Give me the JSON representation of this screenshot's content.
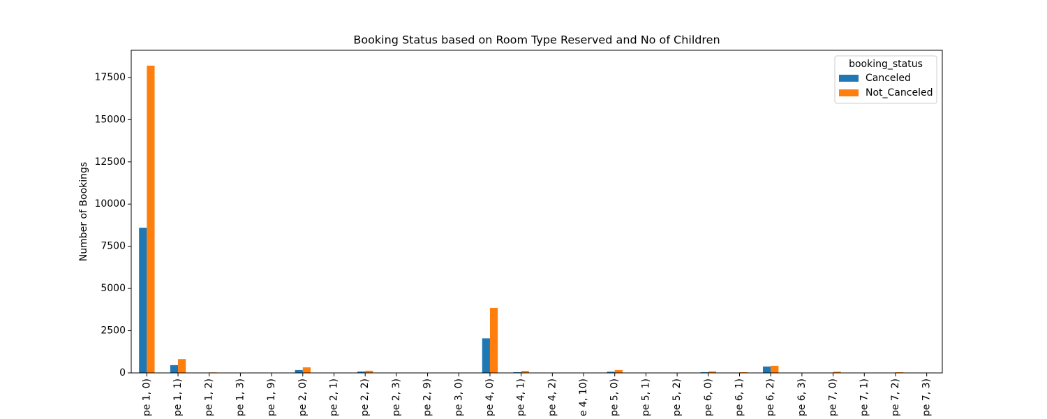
{
  "chart_data": {
    "type": "bar",
    "title": "Booking Status based on Room Type Reserved and No of Children",
    "ylabel": "Number of Bookings",
    "legend_title": "booking_status",
    "legend_loc": "upper right",
    "categories": [
      "pe 1, 0)",
      "pe 1, 1)",
      "pe 1, 2)",
      "pe 1, 3)",
      "pe 1, 9)",
      "pe 2, 0)",
      "pe 2, 1)",
      "pe 2, 2)",
      "pe 2, 3)",
      "pe 2, 9)",
      "pe 3, 0)",
      "pe 4, 0)",
      "pe 4, 1)",
      "pe 4, 2)",
      "e 4, 10)",
      "pe 5, 0)",
      "pe 5, 1)",
      "pe 5, 2)",
      "pe 6, 0)",
      "pe 6, 1)",
      "pe 6, 2)",
      "pe 6, 3)",
      "pe 7, 0)",
      "pe 7, 1)",
      "pe 7, 2)",
      "pe 7, 3)"
    ],
    "series": [
      {
        "name": "Canceled",
        "color": "#1f77b4",
        "values": [
          8600,
          460,
          5,
          0,
          0,
          170,
          0,
          80,
          0,
          0,
          2,
          2050,
          40,
          0,
          0,
          70,
          0,
          0,
          40,
          10,
          380,
          0,
          20,
          0,
          10,
          0
        ]
      },
      {
        "name": "Not_Canceled",
        "color": "#ff7f0e",
        "values": [
          18200,
          820,
          30,
          0,
          1,
          330,
          5,
          130,
          0,
          0,
          5,
          3850,
          120,
          5,
          0,
          170,
          5,
          5,
          90,
          40,
          420,
          0,
          70,
          5,
          40,
          0
        ]
      }
    ],
    "ylim": [
      0,
      19110
    ],
    "yticks": [
      0,
      2500,
      5000,
      7500,
      10000,
      12500,
      15000,
      17500
    ]
  }
}
